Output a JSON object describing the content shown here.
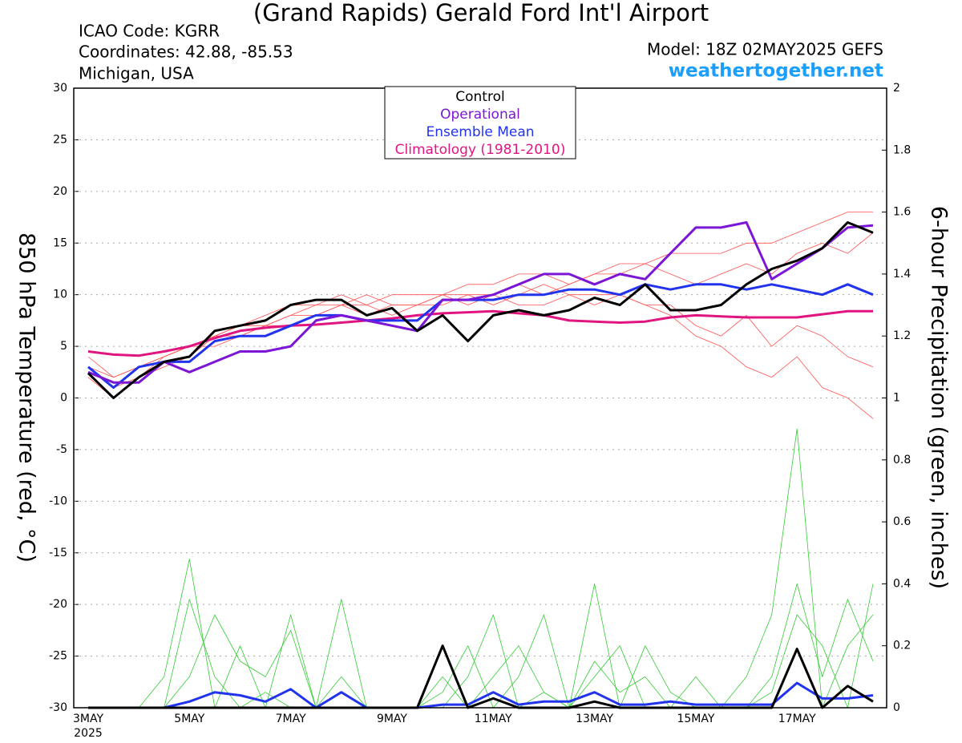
{
  "chart_data": {
    "type": "line",
    "title": "(Grand Rapids) Gerald Ford Int'l Airport",
    "annotations": [
      "ICAO Code: KGRR",
      "Coordinates: 42.88, -85.53",
      "Michigan, USA",
      "Model: 18Z 02MAY2025 GEFS",
      "weathertogether.net"
    ],
    "ylabel": "850 hPa Temperature (red, °C)",
    "y2label": "6-hour Precipitation (green, inches)",
    "x_year": "2025",
    "categories": [
      "3MAY",
      null,
      null,
      null,
      "5MAY",
      null,
      null,
      null,
      "7MAY",
      null,
      null,
      null,
      "9MAY",
      null,
      null,
      null,
      "11MAY",
      null,
      null,
      null,
      "13MAY",
      null,
      null,
      null,
      "15MAY",
      null,
      null,
      null,
      "17MAY",
      null,
      null,
      null
    ],
    "ylim": [
      -30,
      30
    ],
    "yticks": [
      -30,
      -25,
      -20,
      -15,
      -10,
      -5,
      0,
      5,
      10,
      15,
      20,
      25,
      30
    ],
    "y2lim": [
      0,
      2
    ],
    "y2ticks": [
      0,
      0.2,
      0.4,
      0.6,
      0.8,
      1,
      1.2,
      1.4,
      1.6,
      1.8,
      2
    ],
    "grid": true,
    "series": [
      {
        "name": "Control",
        "color": "#000000",
        "values": [
          2.4,
          0,
          2,
          3.5,
          4,
          6.5,
          7,
          7.5,
          9,
          9.5,
          9.5,
          8,
          8.7,
          6.5,
          8,
          5.5,
          8,
          8.5,
          8,
          8.5,
          9.7,
          9,
          11,
          8.5,
          8.5,
          9,
          11,
          12.5,
          13.3,
          14.5,
          17,
          16
        ]
      },
      {
        "name": "Operational",
        "color": "#7b16d6",
        "values": [
          2.5,
          1.5,
          1.5,
          3.5,
          2.5,
          3.5,
          4.5,
          4.5,
          5,
          7.5,
          8,
          7.5,
          7,
          6.5,
          9.5,
          9.5,
          10,
          11,
          12,
          12,
          11,
          12,
          11.5,
          14,
          16.5,
          16.5,
          17,
          11.5,
          13,
          14.5,
          16.5,
          16.7
        ]
      },
      {
        "name": "Ensemble Mean",
        "color": "#2233ee",
        "values": [
          3,
          1,
          3,
          3.5,
          3.5,
          5.5,
          6,
          6,
          7,
          8,
          8,
          7.5,
          7.5,
          7.5,
          9.5,
          9.5,
          9.5,
          10,
          10,
          10.5,
          10.5,
          10,
          11,
          10.5,
          11,
          11,
          10.5,
          11,
          10.5,
          10,
          11,
          10
        ]
      },
      {
        "name": "Climatology (1981-2010)",
        "color": "#e0157f",
        "values": [
          4.5,
          4.2,
          4.1,
          4.5,
          5,
          5.8,
          6.5,
          6.8,
          7,
          7.1,
          7.3,
          7.5,
          7.7,
          8,
          8.2,
          8.3,
          8.4,
          8.2,
          8,
          7.5,
          7.4,
          7.3,
          7.4,
          7.8,
          8,
          7.9,
          7.8,
          7.8,
          7.8,
          8.1,
          8.4,
          8.4
        ]
      }
    ],
    "temperature_members": {
      "color": "#ff5050",
      "members": [
        [
          3,
          1,
          2,
          4,
          5,
          6,
          7,
          8,
          9,
          9,
          10,
          9,
          10,
          10,
          10,
          11,
          11,
          12,
          12,
          11,
          12,
          13,
          13,
          14,
          14,
          14,
          15,
          15,
          16,
          17,
          18,
          18
        ],
        [
          2,
          0,
          2,
          3,
          4,
          6,
          7,
          7,
          8,
          8,
          9,
          8,
          9,
          9,
          9,
          10,
          10,
          9,
          9,
          10,
          10,
          10,
          9,
          9,
          7,
          6,
          8,
          5,
          7,
          6,
          4,
          3
        ],
        [
          3,
          2,
          3,
          4,
          5,
          6,
          6,
          7,
          7,
          8,
          9,
          9,
          8,
          9,
          10,
          10,
          9,
          10,
          11,
          10,
          9,
          10,
          9,
          8,
          6,
          5,
          3,
          2,
          4,
          1,
          0,
          -2
        ],
        [
          4,
          2,
          3,
          4,
          5,
          5,
          6,
          7,
          8,
          9,
          9,
          10,
          9,
          9,
          10,
          9,
          10,
          11,
          10,
          11,
          12,
          12,
          13,
          12,
          11,
          12,
          13,
          12,
          14,
          15,
          14,
          16
        ]
      ]
    },
    "precip_series": [
      {
        "color": "#2233ee",
        "axis": "y2",
        "values": [
          0,
          0,
          0,
          0,
          0.02,
          0.05,
          0.04,
          0.02,
          0.06,
          0,
          0.05,
          0,
          0,
          0,
          0.01,
          0.01,
          0.05,
          0.01,
          0.02,
          0.02,
          0.05,
          0.01,
          0.01,
          0.02,
          0.01,
          0.01,
          0.01,
          0.01,
          0.08,
          0.03,
          0.03,
          0.04
        ]
      },
      {
        "color": "#000000",
        "axis": "y2",
        "values": [
          0,
          0,
          0,
          0,
          0,
          0,
          0,
          0,
          0,
          0,
          0,
          0,
          0,
          0,
          0.2,
          0,
          0.03,
          0,
          0,
          0,
          0.02,
          0,
          0,
          0,
          0,
          0,
          0,
          0,
          0.19,
          0,
          0.07,
          0.02
        ]
      }
    ],
    "precip_members": {
      "color": "#33cc33",
      "axis": "y2",
      "members": [
        [
          0,
          0,
          0,
          0,
          0.35,
          0.1,
          0,
          0.05,
          0,
          0,
          0.35,
          0,
          0,
          0,
          0,
          0.1,
          0.3,
          0,
          0.05,
          0,
          0.15,
          0.05,
          0.1,
          0,
          0,
          0,
          0.1,
          0.3,
          0.9,
          0,
          0.2,
          0.3
        ],
        [
          0,
          0,
          0,
          0.1,
          0.48,
          0,
          0.2,
          0,
          0.3,
          0,
          0.1,
          0,
          0,
          0,
          0.1,
          0,
          0.1,
          0.2,
          0.05,
          0,
          0.4,
          0,
          0.2,
          0.05,
          0,
          0,
          0,
          0.05,
          0.3,
          0.2,
          0,
          0.4
        ],
        [
          0,
          0,
          0,
          0,
          0.1,
          0.3,
          0.15,
          0.1,
          0.25,
          0,
          0.05,
          0,
          0,
          0,
          0.05,
          0.2,
          0,
          0.1,
          0.3,
          0,
          0.1,
          0.2,
          0,
          0,
          0.1,
          0,
          0,
          0.1,
          0.4,
          0.1,
          0.35,
          0.15
        ]
      ]
    }
  }
}
